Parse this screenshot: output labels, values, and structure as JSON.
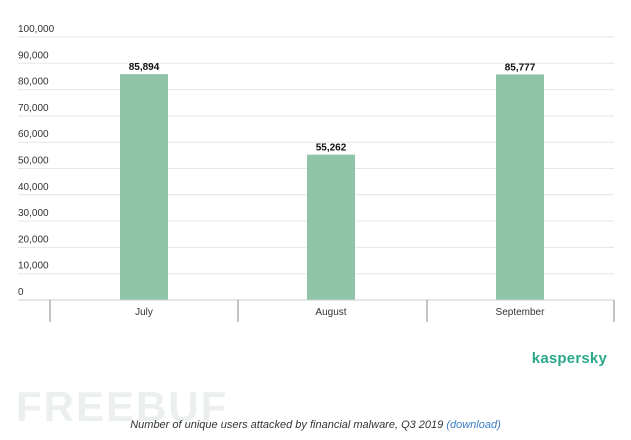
{
  "chart_data": {
    "type": "bar",
    "categories": [
      "July",
      "August",
      "September"
    ],
    "values": [
      85894,
      55262,
      85777
    ],
    "value_labels": [
      "85,894",
      "55,262",
      "85,777"
    ],
    "y_ticks": [
      "0",
      "10,000",
      "20,000",
      "30,000",
      "40,000",
      "50,000",
      "60,000",
      "70,000",
      "80,000",
      "90,000",
      "100,000"
    ],
    "ylim": [
      0,
      100000
    ],
    "grid": true,
    "bar_color": "#8fc4a8",
    "title": "",
    "xlabel": "",
    "ylabel": ""
  },
  "brand": {
    "name": "kaspersky",
    "color": "#2aa889"
  },
  "watermark": {
    "text": "FREEBUF"
  },
  "caption": {
    "text": "Number of unique users attacked by financial malware, Q3 2019",
    "link_text": "(download)",
    "link_color": "#3b7dc4"
  }
}
